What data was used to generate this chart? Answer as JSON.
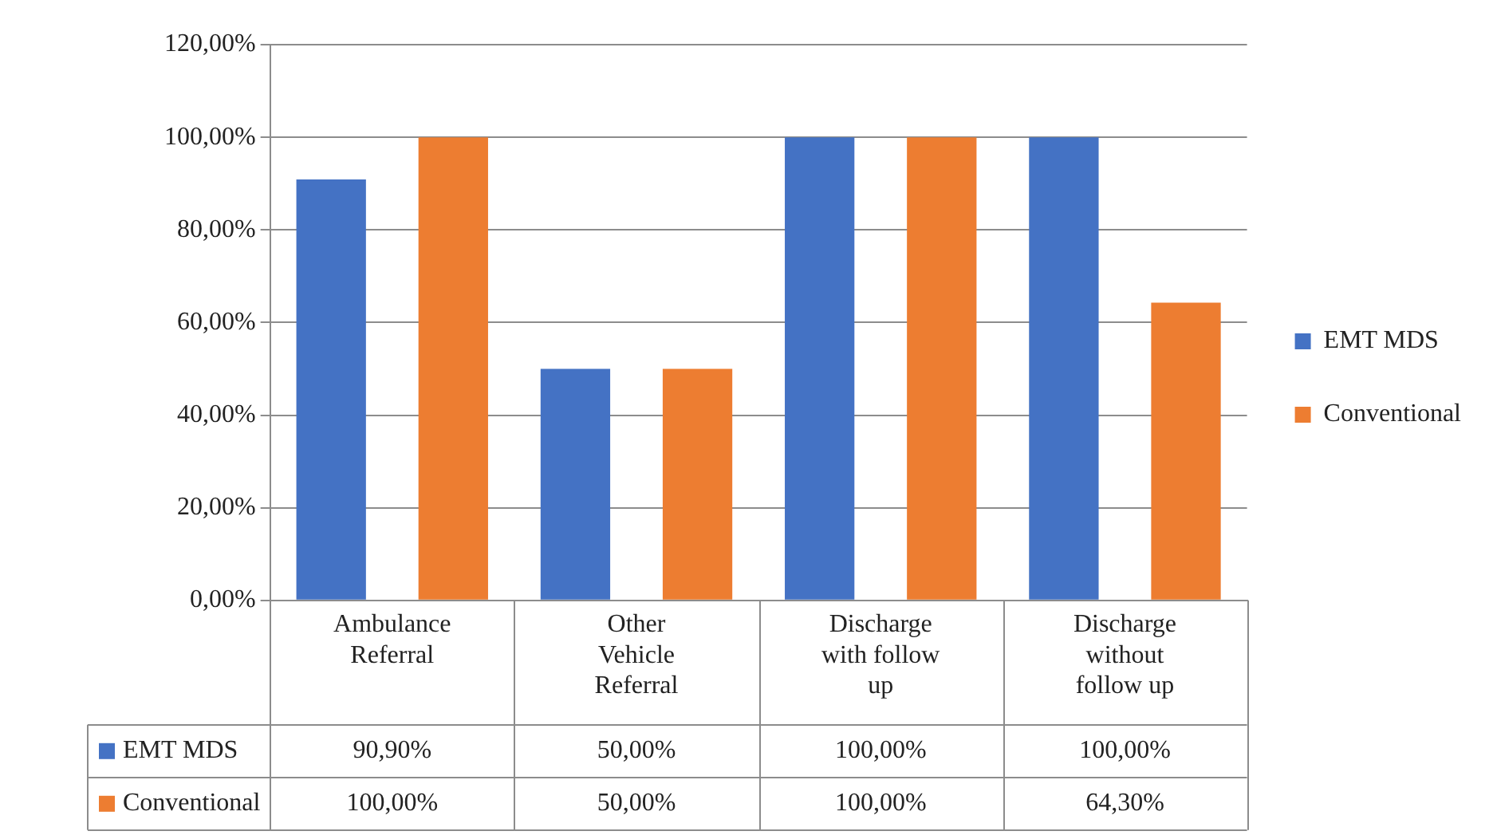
{
  "chart_data": {
    "type": "bar",
    "categories": [
      "Ambulance Referral",
      "Other Vehicle Referral",
      "Discharge with follow up",
      "Discharge without follow up"
    ],
    "series": [
      {
        "name": "EMT MDS",
        "color": "#4472c4",
        "values": [
          90.9,
          50,
          100,
          100
        ],
        "value_labels": [
          "90,90%",
          "50,00%",
          "100,00%",
          "100,00%"
        ]
      },
      {
        "name": "Conventional",
        "color": "#ed7d31",
        "values": [
          100,
          50,
          100,
          64.3
        ],
        "value_labels": [
          "100,00%",
          "50,00%",
          "100,00%",
          "64,30%"
        ]
      }
    ],
    "ylim": [
      0,
      120
    ],
    "yticks": [
      {
        "value": 0,
        "label": "0,00%"
      },
      {
        "value": 20,
        "label": "20,00%"
      },
      {
        "value": 40,
        "label": "40,00%"
      },
      {
        "value": 60,
        "label": "60,00%"
      },
      {
        "value": 80,
        "label": "80,00%"
      },
      {
        "value": 100,
        "label": "100,00%"
      },
      {
        "value": 120,
        "label": "120,00%"
      }
    ],
    "grid": "y",
    "legend": "right"
  }
}
